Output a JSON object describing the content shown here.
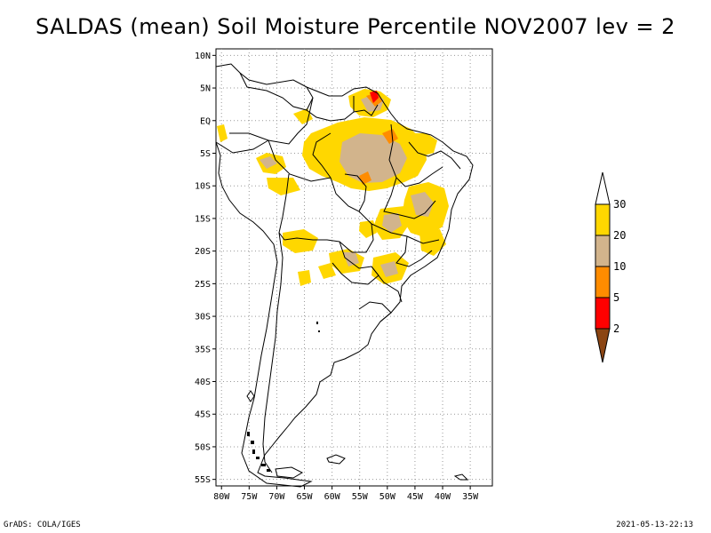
{
  "title": "SALDAS (mean) Soil Moisture Percentile NOV2007 lev = 2",
  "footer": {
    "left": "GrADS: COLA/IGES",
    "right": "2021-05-13-22:13"
  },
  "map": {
    "lon_range": [
      -81,
      -31
    ],
    "lat_range": [
      -56,
      11
    ],
    "lat_ticks": [
      {
        "value": 10,
        "label": "10N"
      },
      {
        "value": 5,
        "label": "5N"
      },
      {
        "value": 0,
        "label": "EQ"
      },
      {
        "value": -5,
        "label": "5S"
      },
      {
        "value": -10,
        "label": "10S"
      },
      {
        "value": -15,
        "label": "15S"
      },
      {
        "value": -20,
        "label": "20S"
      },
      {
        "value": -25,
        "label": "25S"
      },
      {
        "value": -30,
        "label": "30S"
      },
      {
        "value": -35,
        "label": "35S"
      },
      {
        "value": -40,
        "label": "40S"
      },
      {
        "value": -45,
        "label": "45S"
      },
      {
        "value": -50,
        "label": "50S"
      },
      {
        "value": -55,
        "label": "55S"
      }
    ],
    "lon_ticks": [
      {
        "value": -80,
        "label": "80W"
      },
      {
        "value": -75,
        "label": "75W"
      },
      {
        "value": -70,
        "label": "70W"
      },
      {
        "value": -65,
        "label": "65W"
      },
      {
        "value": -60,
        "label": "60W"
      },
      {
        "value": -55,
        "label": "55W"
      },
      {
        "value": -50,
        "label": "50W"
      },
      {
        "value": -45,
        "label": "45W"
      },
      {
        "value": -40,
        "label": "40W"
      },
      {
        "value": -35,
        "label": "35W"
      }
    ]
  },
  "colorbar": {
    "levels": [
      "2",
      "5",
      "10",
      "20",
      "30"
    ],
    "colors": {
      "below_2": "#8b4513",
      "2_5": "#ff0000",
      "5_10": "#ff8c00",
      "10_20": "#d2b48c",
      "20_30": "#ffd700",
      "above_30": "#ffffff"
    }
  },
  "chart_data": {
    "type": "heatmap",
    "title": "SALDAS (mean) Soil Moisture Percentile NOV2007 lev = 2",
    "variable": "Soil Moisture Percentile",
    "x_ticks": [
      "80W",
      "75W",
      "70W",
      "65W",
      "60W",
      "55W",
      "50W",
      "45W",
      "40W",
      "35W"
    ],
    "y_ticks": [
      "10N",
      "5N",
      "EQ",
      "5S",
      "10S",
      "15S",
      "20S",
      "25S",
      "30S",
      "35S",
      "40S",
      "45S",
      "50S",
      "55S"
    ],
    "xlim": [
      -81,
      -31
    ],
    "ylim": [
      -56,
      11
    ],
    "color_levels": [
      2,
      5,
      10,
      20,
      30
    ],
    "regions": [
      {
        "lon": -53,
        "lat": 3.5,
        "percentile": 4
      },
      {
        "lon": -52,
        "lat": 5.0,
        "percentile": 7
      },
      {
        "lon": -50,
        "lat": -1.5,
        "percentile": 8
      },
      {
        "lon": -55,
        "lat": -7.5,
        "percentile": 12
      },
      {
        "lon": -57,
        "lat": -5.5,
        "percentile": 15
      },
      {
        "lon": -60,
        "lat": -5.0,
        "percentile": 22
      },
      {
        "lon": -47,
        "lat": -5.0,
        "percentile": 22
      },
      {
        "lon": -47,
        "lat": -14.0,
        "percentile": 24
      },
      {
        "lon": -68,
        "lat": -8.0,
        "percentile": 22
      },
      {
        "lon": -64,
        "lat": -21.0,
        "percentile": 24
      },
      {
        "lon": -42,
        "lat": -17.5,
        "percentile": 25
      },
      {
        "lon": -58,
        "lat": -21.5,
        "percentile": 25
      }
    ]
  }
}
